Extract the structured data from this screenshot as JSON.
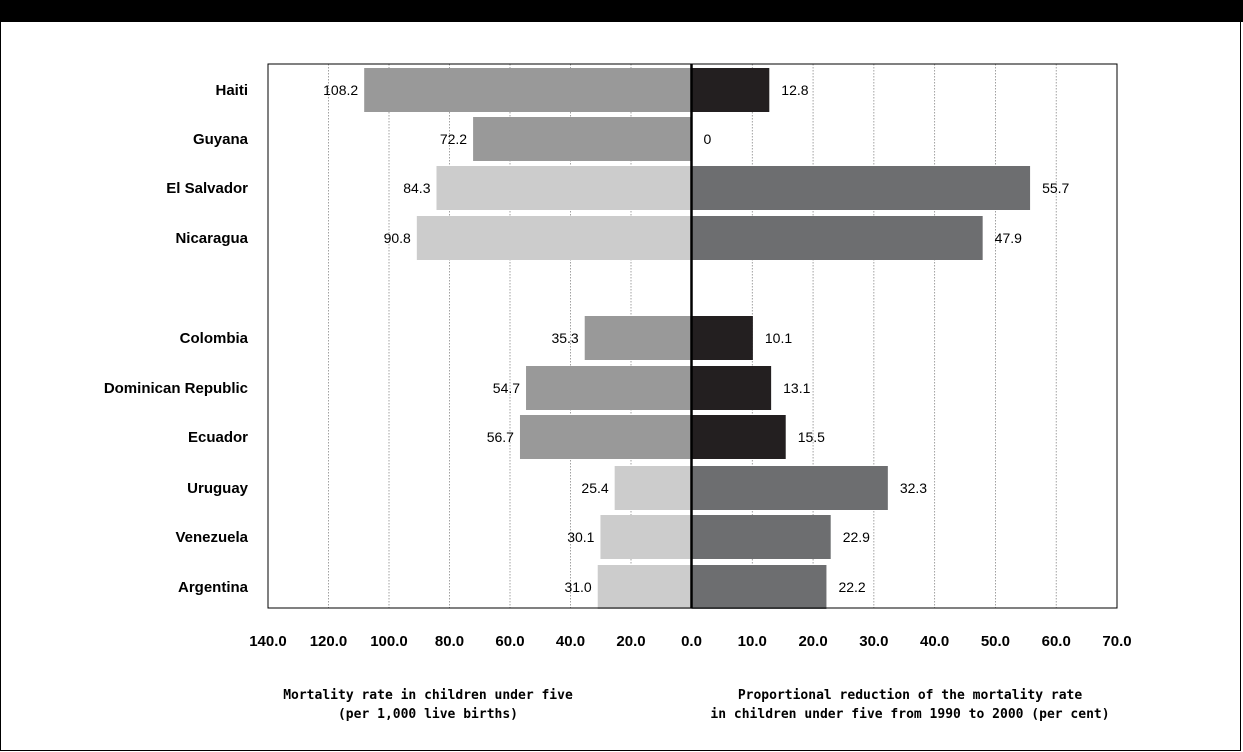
{
  "chart_data": {
    "type": "bar",
    "orientation": "horizontal",
    "categories": [
      "Haiti",
      "Guyana",
      "El Salvador",
      "Nicaragua",
      "Colombia",
      "Dominican Republic",
      "Ecuador",
      "Uruguay",
      "Venezuela",
      "Argentina"
    ],
    "left": {
      "xlabel": "Mortality rate in children under five (per 1,000 live births)",
      "xlabel_lines": [
        "Mortality rate in children under five",
        "(per 1,000 live births)"
      ],
      "xlim": [
        0,
        140
      ],
      "ticks": [
        "140.0",
        "120.0",
        "100.0",
        "80.0",
        "60.0",
        "40.0",
        "20.0",
        "0.0"
      ],
      "values": [
        108.2,
        72.2,
        84.3,
        90.8,
        35.3,
        54.7,
        56.7,
        25.4,
        30.1,
        31.0
      ],
      "labels": [
        "108.2",
        "72.2",
        "84.3",
        "90.8",
        "35.3",
        "54.7",
        "56.7",
        "25.4",
        "30.1",
        "31.0"
      ]
    },
    "right": {
      "xlabel": "Proportional reduction of the mortality rate in children under five from 1990 to 2000 (per cent)",
      "xlabel_lines": [
        "Proportional reduction of the mortality rate",
        "in children under five from 1990 to 2000 (per cent)"
      ],
      "xlim": [
        0,
        70
      ],
      "ticks": [
        "10.0",
        "20.0",
        "30.0",
        "40.0",
        "50.0",
        "60.0",
        "70.0"
      ],
      "values": [
        12.8,
        0,
        55.7,
        47.9,
        10.1,
        13.1,
        15.5,
        32.3,
        22.9,
        22.2
      ],
      "labels": [
        "12.8",
        "0",
        "55.7",
        "47.9",
        "10.1",
        "13.1",
        "15.5",
        "32.3",
        "22.9",
        "22.2"
      ]
    },
    "colors": {
      "left_bars": [
        "#999999",
        "#999999",
        "#cccccc",
        "#cccccc",
        "#999999",
        "#999999",
        "#999999",
        "#cccccc",
        "#cccccc",
        "#cccccc"
      ],
      "right_bars": [
        "#231f20",
        "#231f20",
        "#6d6e70",
        "#6d6e70",
        "#231f20",
        "#231f20",
        "#231f20",
        "#6d6e70",
        "#6d6e70",
        "#6d6e70"
      ]
    },
    "grid": true
  }
}
